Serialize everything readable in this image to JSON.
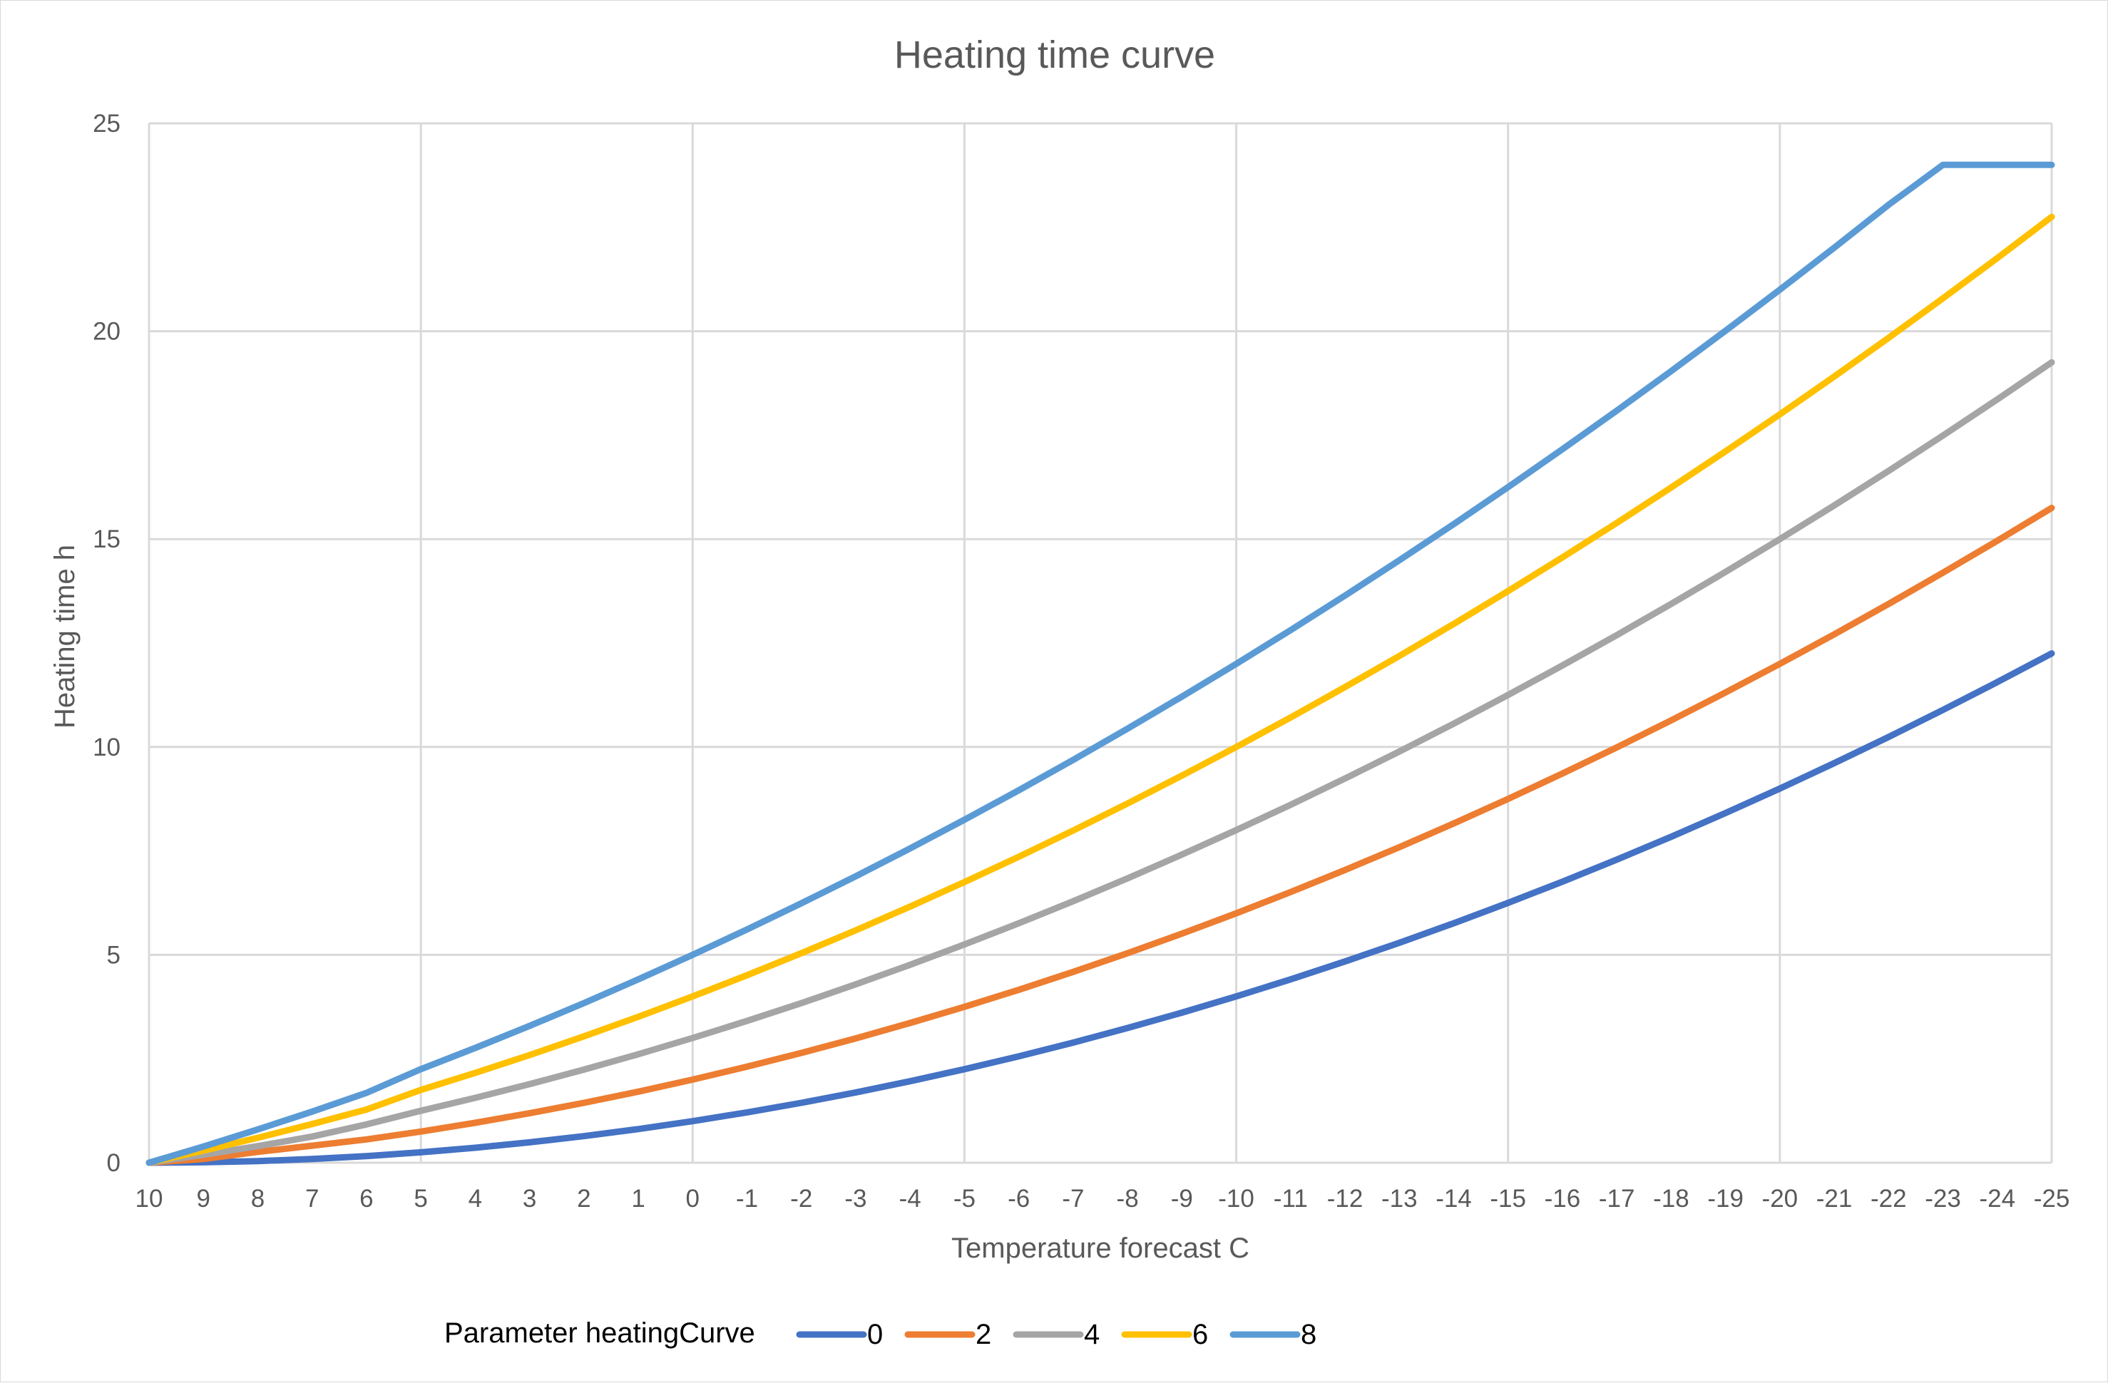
{
  "chart_data": {
    "type": "line",
    "title": "Heating time curve",
    "xlabel": "Temperature forecast C",
    "ylabel": "Heating time h",
    "categories": [
      "10",
      "9",
      "8",
      "7",
      "6",
      "5",
      "4",
      "3",
      "2",
      "1",
      "0",
      "-1",
      "-2",
      "-3",
      "-4",
      "-5",
      "-6",
      "-7",
      "-8",
      "-9",
      "-10",
      "-11",
      "-12",
      "-13",
      "-14",
      "-15",
      "-16",
      "-17",
      "-18",
      "-19",
      "-20",
      "-21",
      "-22",
      "-23",
      "-24",
      "-25"
    ],
    "ylim": [
      0,
      25
    ],
    "yticks": [
      0,
      5,
      10,
      15,
      20,
      25
    ],
    "grid": true,
    "legend": {
      "position": "bottom",
      "title": "Parameter heatingCurve"
    },
    "series": [
      {
        "name": "0",
        "color": "#4472c4",
        "values": [
          0,
          0.01,
          0.04,
          0.09,
          0.16,
          0.25,
          0.36,
          0.49,
          0.64,
          0.81,
          1.0,
          1.21,
          1.44,
          1.69,
          1.96,
          2.25,
          2.56,
          2.89,
          3.24,
          3.61,
          4.0,
          4.41,
          4.84,
          5.29,
          5.76,
          6.25,
          6.76,
          7.29,
          7.84,
          8.41,
          9.0,
          9.61,
          10.24,
          10.89,
          11.56,
          12.25
        ]
      },
      {
        "name": "2",
        "color": "#ed7d31",
        "values": [
          0,
          0.09,
          0.26,
          0.41,
          0.56,
          0.75,
          0.96,
          1.19,
          1.44,
          1.71,
          2.0,
          2.31,
          2.64,
          2.99,
          3.36,
          3.75,
          4.16,
          4.59,
          5.04,
          5.51,
          6.0,
          6.51,
          7.04,
          7.59,
          8.16,
          8.75,
          9.36,
          9.99,
          10.64,
          11.31,
          12.0,
          12.71,
          13.44,
          14.19,
          14.96,
          15.75
        ]
      },
      {
        "name": "4",
        "color": "#a5a5a5",
        "values": [
          0,
          0.19,
          0.4,
          0.63,
          0.92,
          1.25,
          1.56,
          1.89,
          2.24,
          2.61,
          3.0,
          3.41,
          3.84,
          4.29,
          4.76,
          5.25,
          5.76,
          6.29,
          6.84,
          7.41,
          8.0,
          8.61,
          9.24,
          9.89,
          10.56,
          11.25,
          11.96,
          12.69,
          13.44,
          14.21,
          15.0,
          15.81,
          16.64,
          17.49,
          18.36,
          19.25
        ]
      },
      {
        "name": "6",
        "color": "#ffc000",
        "values": [
          0,
          0.29,
          0.6,
          0.93,
          1.28,
          1.75,
          2.16,
          2.59,
          3.04,
          3.51,
          4.0,
          4.51,
          5.04,
          5.59,
          6.16,
          6.75,
          7.36,
          7.99,
          8.64,
          9.31,
          10.0,
          10.71,
          11.44,
          12.19,
          12.96,
          13.75,
          14.56,
          15.39,
          16.24,
          17.11,
          18.0,
          18.91,
          19.84,
          20.79,
          21.76,
          22.75
        ]
      },
      {
        "name": "8",
        "color": "#5b9bd5",
        "values": [
          0,
          0.39,
          0.8,
          1.23,
          1.68,
          2.25,
          2.76,
          3.29,
          3.84,
          4.41,
          5.0,
          5.61,
          6.24,
          6.89,
          7.56,
          8.25,
          8.96,
          9.69,
          10.44,
          11.21,
          12.0,
          12.81,
          13.64,
          14.49,
          15.36,
          16.25,
          17.16,
          18.09,
          19.04,
          20.01,
          21.0,
          22.01,
          23.04,
          24.0,
          24.0,
          24.0
        ]
      }
    ]
  }
}
